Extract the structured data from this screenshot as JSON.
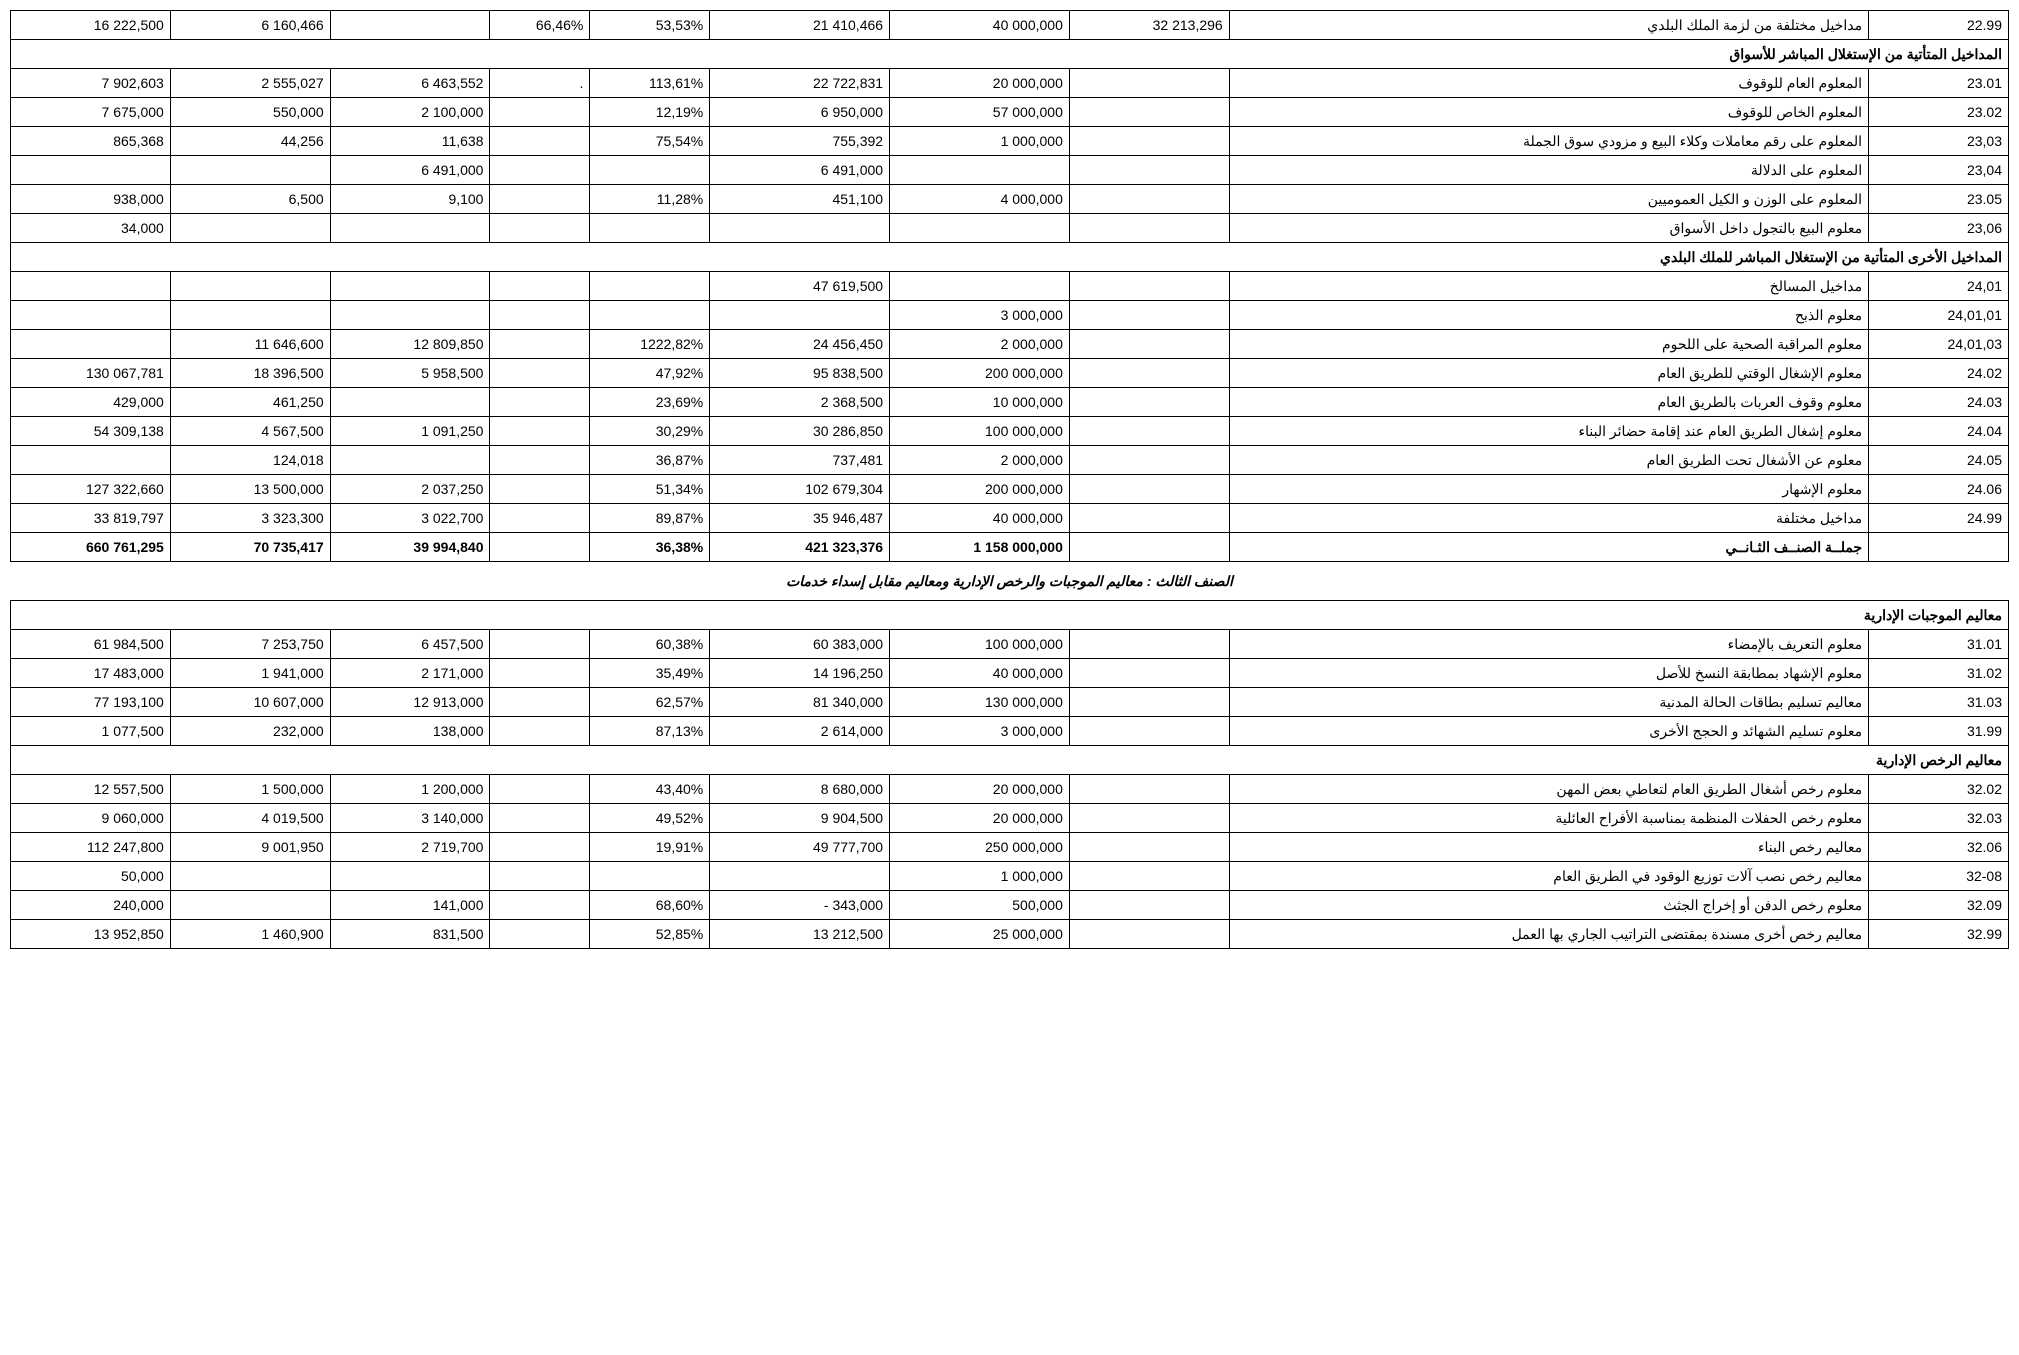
{
  "colwidths": [
    "8%",
    "8%",
    "8%",
    "5%",
    "6%",
    "9%",
    "9%",
    "8%",
    "32%",
    "7%"
  ],
  "rows": [
    {
      "cells": [
        "16 222,500",
        "6 160,466",
        "",
        "66,46%",
        "53,53%",
        "21 410,466",
        "40 000,000",
        "32 213,296",
        "مداخيل مختلفة من لزمة الملك البلدي",
        "22.99"
      ]
    },
    {
      "header": true,
      "label": "المداخيل المتأتية من الإستغلال المباشر للأسواق"
    },
    {
      "cells": [
        "7 902,603",
        "2 555,027",
        "6 463,552",
        ".",
        "113,61%",
        "22 722,831",
        "20 000,000",
        "",
        "المعلوم العام للوقوف",
        "23.01"
      ]
    },
    {
      "cells": [
        "7 675,000",
        "550,000",
        "2 100,000",
        "",
        "12,19%",
        "6 950,000",
        "57 000,000",
        "",
        "المعلوم الخاص للوقوف",
        "23.02"
      ]
    },
    {
      "cells": [
        "865,368",
        "44,256",
        "11,638",
        "",
        "75,54%",
        "755,392",
        "1 000,000",
        "",
        "المعلوم على رقم معاملات وكلاء البيع و مزودي سوق الجملة",
        "23,03"
      ]
    },
    {
      "cells": [
        "",
        "",
        "6 491,000",
        "",
        "",
        "6 491,000",
        "",
        "",
        "المعلوم على الدلالة",
        "23,04"
      ]
    },
    {
      "cells": [
        "938,000",
        "6,500",
        "9,100",
        "",
        "11,28%",
        "451,100",
        "4 000,000",
        "",
        "المعلوم على الوزن و الكيل العموميين",
        "23.05"
      ]
    },
    {
      "cells": [
        "34,000",
        "",
        "",
        "",
        "",
        "",
        "",
        "",
        "معلوم البيع بالتجول داخل الأسواق",
        "23,06"
      ]
    },
    {
      "header": true,
      "label": "المداخيل الأخرى المتأتية من الإستغلال المباشر للملك البلدي"
    },
    {
      "cells": [
        "",
        "",
        "",
        "",
        "",
        "47 619,500",
        "",
        "",
        "مداخيل المسالخ",
        "24,01"
      ]
    },
    {
      "cells": [
        "",
        "",
        "",
        "",
        "",
        "",
        "3 000,000",
        "",
        "معلوم الذبح",
        "24,01,01"
      ]
    },
    {
      "cells": [
        "",
        "11 646,600",
        "12 809,850",
        "",
        "1222,82%",
        "24 456,450",
        "2 000,000",
        "",
        "معلوم المراقبة الصحية على اللحوم",
        "24,01,03"
      ]
    },
    {
      "cells": [
        "130 067,781",
        "18 396,500",
        "5 958,500",
        "",
        "47,92%",
        "95 838,500",
        "200 000,000",
        "",
        "معلوم الإشغال الوقتي للطريق العام",
        "24.02"
      ]
    },
    {
      "cells": [
        "429,000",
        "461,250",
        "",
        "",
        "23,69%",
        "2 368,500",
        "10 000,000",
        "",
        "معلوم وقوف العربات بالطريق العام",
        "24.03"
      ]
    },
    {
      "cells": [
        "54 309,138",
        "4 567,500",
        "1 091,250",
        "",
        "30,29%",
        "30 286,850",
        "100 000,000",
        "",
        "معلوم إشغال الطريق العام عند إقامة حضائر البناء",
        "24.04"
      ]
    },
    {
      "cells": [
        "",
        "124,018",
        "",
        "",
        "36,87%",
        "737,481",
        "2 000,000",
        "",
        "معلوم عن الأشغال تحت الطريق العام",
        "24.05"
      ]
    },
    {
      "cells": [
        "127 322,660",
        "13 500,000",
        "2 037,250",
        "",
        "51,34%",
        "102 679,304",
        "200 000,000",
        "",
        "معلوم الإشهار",
        "24.06"
      ]
    },
    {
      "cells": [
        "33 819,797",
        "3 323,300",
        "3 022,700",
        "",
        "89,87%",
        "35 946,487",
        "40 000,000",
        "",
        "مداخيل مختلفة",
        "24.99"
      ]
    },
    {
      "bold": true,
      "cells": [
        "660 761,295",
        "70 735,417",
        "39 994,840",
        "",
        "36,38%",
        "421 323,376",
        "1 158 000,000",
        "",
        "جملــة الصنــف الثـانــي",
        ""
      ]
    },
    {
      "title": true,
      "label": "الصنف الثالث : معاليم الموجبات والرخص الإدارية ومعاليم مقابل إسداء خدمات"
    },
    {
      "header": true,
      "label": "معاليم الموجبات الإدارية"
    },
    {
      "cells": [
        "61 984,500",
        "7 253,750",
        "6 457,500",
        "",
        "60,38%",
        "60 383,000",
        "100 000,000",
        "",
        "معلوم التعريف بالإمضاء",
        "31.01"
      ]
    },
    {
      "cells": [
        "17 483,000",
        "1 941,000",
        "2 171,000",
        "",
        "35,49%",
        "14 196,250",
        "40 000,000",
        "",
        "معلوم الإشهاد بمطابقة النسخ للأصل",
        "31.02"
      ]
    },
    {
      "cells": [
        "77 193,100",
        "10 607,000",
        "12 913,000",
        "",
        "62,57%",
        "81 340,000",
        "130 000,000",
        "",
        "معاليم تسليم بطاقات الحالة المدنية",
        "31.03"
      ]
    },
    {
      "cells": [
        "1 077,500",
        "232,000",
        "138,000",
        "",
        "87,13%",
        "2 614,000",
        "3 000,000",
        "",
        "معلوم تسليم الشهائد و الحجج الأخرى",
        "31.99"
      ]
    },
    {
      "header": true,
      "label": "معاليم الرخص الإدارية"
    },
    {
      "cells": [
        "12 557,500",
        "1 500,000",
        "1 200,000",
        "",
        "43,40%",
        "8 680,000",
        "20 000,000",
        "",
        "معلوم رخص أشغال الطريق العام لتعاطي بعض المهن",
        "32.02"
      ]
    },
    {
      "cells": [
        "9 060,000",
        "4 019,500",
        "3 140,000",
        "",
        "49,52%",
        "9 904,500",
        "20 000,000",
        "",
        "معلوم رخص الحفلات المنظمة بمناسبة الأفراح العائلية",
        "32.03"
      ]
    },
    {
      "cells": [
        "112 247,800",
        "9 001,950",
        "2 719,700",
        "",
        "19,91%",
        "49 777,700",
        "250 000,000",
        "",
        "معاليم رخص البناء",
        "32.06"
      ]
    },
    {
      "cells": [
        "50,000",
        "",
        "",
        "",
        "",
        "",
        "1 000,000",
        "",
        "معاليم رخص نصب آلات توزيع الوقود في الطريق العام",
        "32-08"
      ]
    },
    {
      "cells": [
        "240,000",
        "",
        "141,000",
        "",
        "68,60%",
        "- 343,000",
        "500,000",
        "",
        "معلوم رخص الدفن أو إخراج الجثث",
        "32.09"
      ]
    },
    {
      "cells": [
        "13 952,850",
        "1 460,900",
        "831,500",
        "",
        "52,85%",
        "13 212,500",
        "25 000,000",
        "",
        "معاليم رخص أخرى مسندة بمقتضى التراتيب الجاري بها العمل",
        "32.99"
      ]
    }
  ]
}
